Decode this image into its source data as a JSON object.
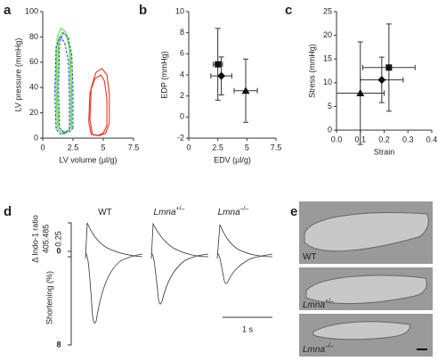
{
  "chart_data": [
    {
      "type": "line",
      "panel": "a",
      "xlabel": "LV volume (µl/g)",
      "ylabel": "LV pressure (mmHg)",
      "xlim": [
        0,
        7.5
      ],
      "xticks": [
        0,
        2.5,
        5,
        7.5
      ],
      "ylim": [
        0,
        100
      ],
      "yticks": [
        0,
        20,
        40,
        60,
        80,
        100
      ],
      "series": [
        {
          "color": "#66dd44",
          "dash": false,
          "x": [
            2.3,
            2.3,
            2.2,
            1.9,
            1.5,
            1.2,
            1.1,
            1.2,
            1.6,
            2.0,
            2.3
          ],
          "y": [
            8,
            40,
            70,
            84,
            87,
            80,
            40,
            8,
            4,
            5,
            8
          ]
        },
        {
          "color": "#66dd44",
          "dash": false,
          "x": [
            2.4,
            2.4,
            2.3,
            2.0,
            1.6,
            1.3,
            1.2,
            1.3,
            1.7,
            2.1,
            2.4
          ],
          "y": [
            9,
            38,
            66,
            81,
            84,
            77,
            38,
            9,
            5,
            6,
            9
          ]
        },
        {
          "color": "#2255cc",
          "dash": true,
          "x": [
            2.5,
            2.5,
            2.4,
            2.1,
            1.7,
            1.4,
            1.3,
            1.4,
            1.8,
            2.2,
            2.5
          ],
          "y": [
            8,
            38,
            66,
            80,
            83,
            76,
            38,
            8,
            4,
            5,
            8
          ]
        },
        {
          "color": "#2255cc",
          "dash": true,
          "x": [
            2.2,
            2.2,
            2.1,
            1.8,
            1.4,
            1.1,
            1.0,
            1.1,
            1.5,
            1.9,
            2.2
          ],
          "y": [
            7,
            36,
            62,
            76,
            80,
            72,
            36,
            7,
            3,
            4,
            7
          ]
        },
        {
          "color": "#ee3322",
          "dash": false,
          "x": [
            5.5,
            5.5,
            5.3,
            4.9,
            4.4,
            4.0,
            3.9,
            4.1,
            4.7,
            5.2,
            5.5
          ],
          "y": [
            12,
            35,
            50,
            55,
            52,
            40,
            15,
            3,
            2,
            4,
            12
          ]
        },
        {
          "color": "#ee3322",
          "dash": false,
          "x": [
            5.3,
            5.3,
            5.1,
            4.8,
            4.3,
            3.9,
            3.8,
            4.0,
            4.5,
            5.0,
            5.3
          ],
          "y": [
            10,
            31,
            45,
            50,
            47,
            36,
            13,
            3,
            2,
            4,
            10
          ]
        }
      ]
    },
    {
      "type": "scatter",
      "panel": "b",
      "xlabel": "EDV (µl/g)",
      "ylabel": "EDP (mmHg)",
      "xlim": [
        0,
        7.5
      ],
      "xticks": [
        0,
        2.5,
        5,
        7.5
      ],
      "ylim": [
        -2,
        10
      ],
      "yticks": [
        -2,
        0,
        2,
        4,
        6,
        8,
        10
      ],
      "points": [
        {
          "marker": "square",
          "x": 2.5,
          "x_err": 0.4,
          "y": 5,
          "y_err": 3.4
        },
        {
          "marker": "diamond",
          "x": 2.8,
          "x_err": 0.9,
          "y": 3.9,
          "y_err": 1.8
        },
        {
          "marker": "triangle",
          "x": 4.9,
          "x_err": 1.0,
          "y": 2.5,
          "y_err": 3.0
        }
      ]
    },
    {
      "type": "scatter",
      "panel": "c",
      "xlabel": "Strain",
      "ylabel": "Stress (mmHg)",
      "xlim": [
        0,
        0.4
      ],
      "xticks": [
        {
          "value": 0,
          "label": "0.0"
        },
        0.1,
        0.2,
        0.3,
        0.4
      ],
      "ylim": [
        0,
        25
      ],
      "yticks": [
        0,
        5,
        10,
        15,
        20,
        25
      ],
      "points": [
        {
          "marker": "square",
          "x": 0.22,
          "x_err": 0.11,
          "y": 13.2,
          "y_err": 9.2
        },
        {
          "marker": "diamond",
          "x": 0.19,
          "x_err": 0.09,
          "y": 10.6,
          "y_err": 4.8
        },
        {
          "marker": "triangle",
          "x": 0.1,
          "x_err": 0.1,
          "y": 7.8,
          "y_err": 10.8
        }
      ]
    }
  ],
  "panel_d": {
    "label": "d",
    "genotypes": [
      {
        "name": "WT",
        "sup": ""
      },
      {
        "name": "Lmna",
        "sup": "+/–"
      },
      {
        "name": "Lmna",
        "sup": "–/–"
      }
    ],
    "indo_label": "Δ Indo-1 ratio",
    "ratio_label": "405:485",
    "indo_scale": "0.25",
    "shortening_label": "Shortening (%)",
    "shortening_top": "0",
    "shortening_bottom": "8",
    "time_scale": "1 s"
  },
  "panel_e": {
    "label": "e",
    "cells": [
      {
        "name": "WT",
        "sup": ""
      },
      {
        "name": "Lmna",
        "sup": "+/–"
      },
      {
        "name": "Lmna",
        "sup": "–/–"
      }
    ]
  }
}
